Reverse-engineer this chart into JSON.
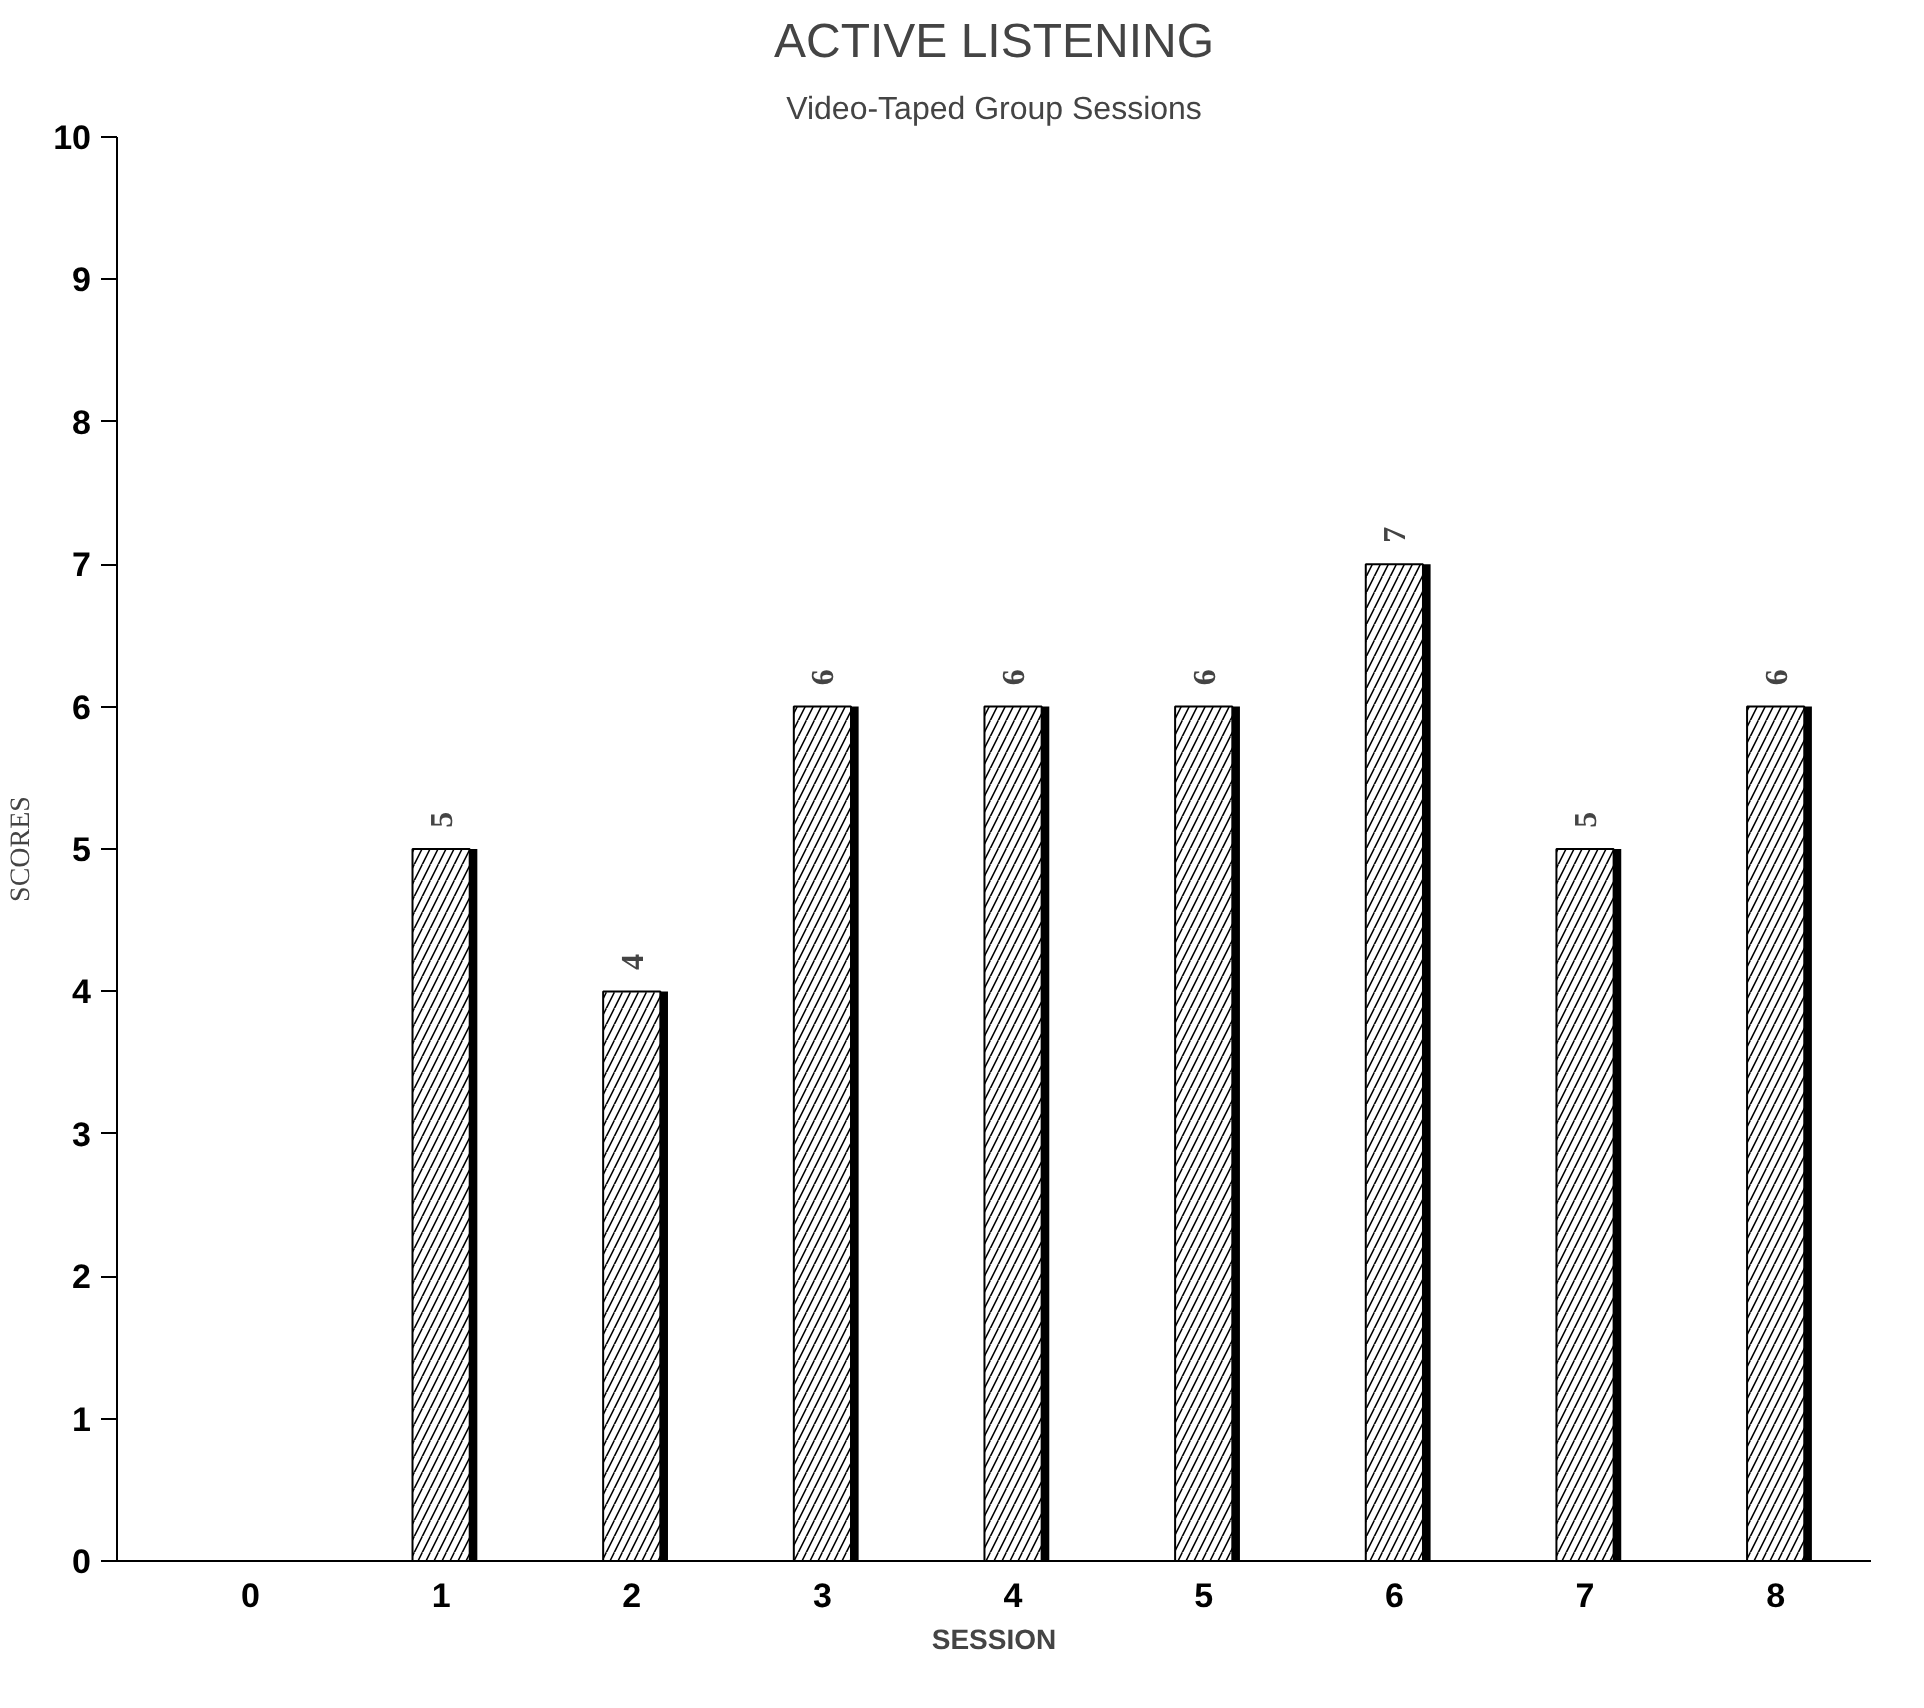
{
  "chart_data": {
    "type": "bar",
    "title": "ACTIVE LISTENING",
    "subtitle": "Video-Taped Group Sessions",
    "xlabel": "SESSION",
    "ylabel": "SCORES",
    "categories": [
      "0",
      "1",
      "2",
      "3",
      "4",
      "5",
      "6",
      "7",
      "8"
    ],
    "values": [
      null,
      5,
      4,
      6,
      6,
      6,
      7,
      5,
      6
    ],
    "color": "#ffffff",
    "ylim": [
      0,
      10
    ],
    "yticks": [
      0,
      1,
      2,
      3,
      4,
      5,
      6,
      7,
      8,
      9,
      10
    ],
    "data_labels": true,
    "grid": false
  }
}
